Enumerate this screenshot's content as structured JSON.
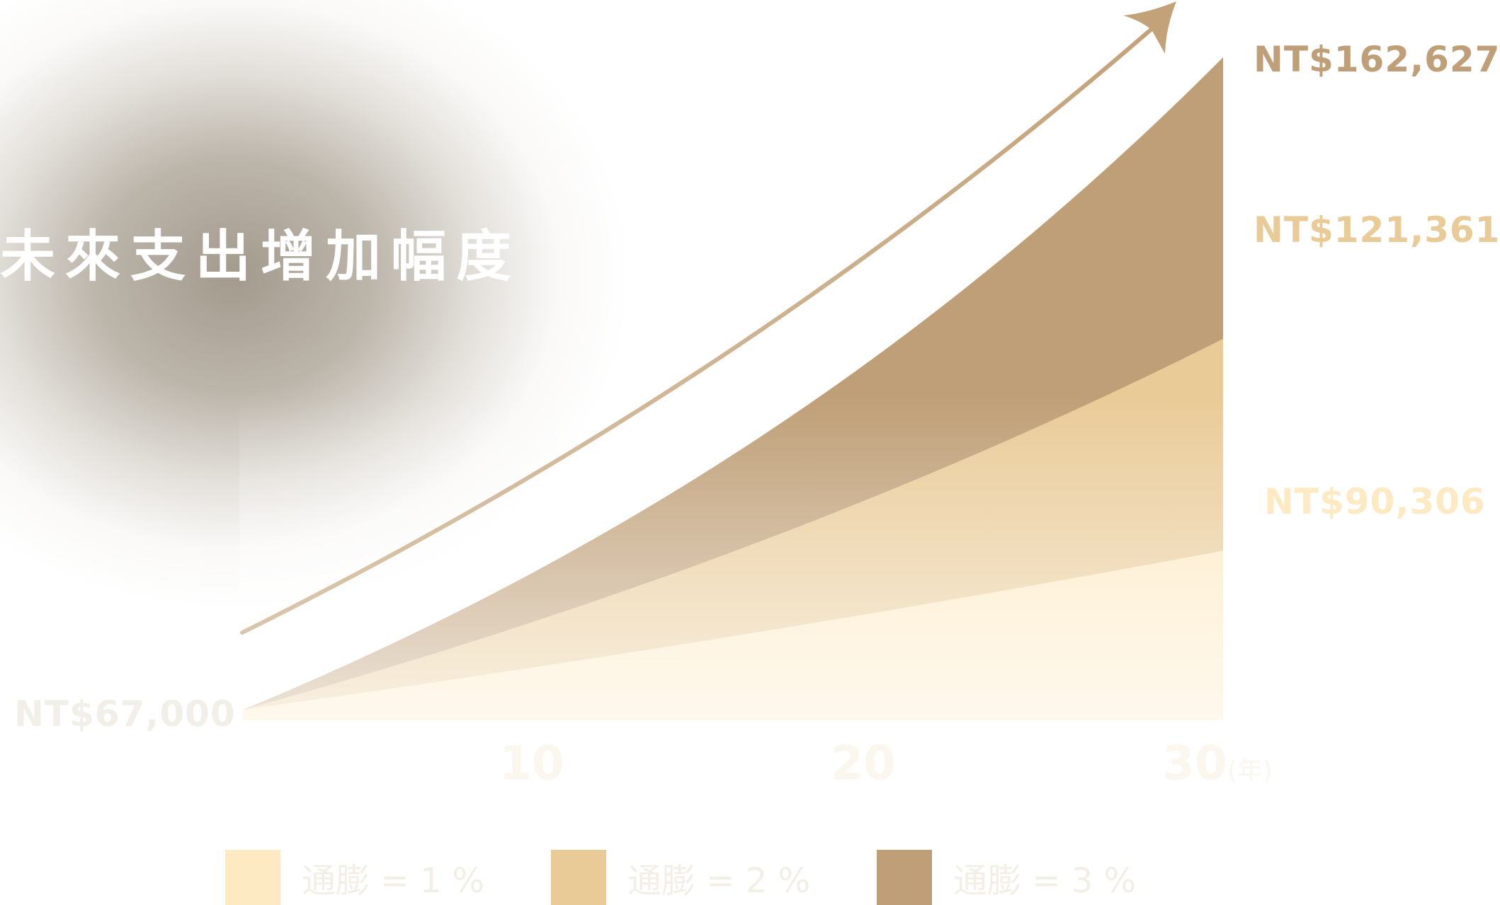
{
  "colors": {
    "inflation_1": "#fde9c2",
    "inflation_2": "#e9cb98",
    "inflation_3": "#bf9f77",
    "arrow": "#c3a27a",
    "start_label": "#f2eee8",
    "axis_labels": "#fbf6ee"
  },
  "chart_data": {
    "type": "area",
    "title": "未來支出增加幅度",
    "x": [
      0,
      10,
      20,
      30
    ],
    "xlabel": "",
    "ylabel": "",
    "x_tick_labels": [
      "10",
      "20",
      "30"
    ],
    "x_unit": "(年)",
    "start_value": 67000,
    "start_label": "NT$67,000",
    "series": [
      {
        "name": "通膨 = 1 %",
        "rate": 0.01,
        "values": [
          67000,
          74009,
          81752,
          90306
        ],
        "end_label": "NT$90,306",
        "color": "#fde9c2"
      },
      {
        "name": "通膨 = 2 %",
        "rate": 0.02,
        "values": [
          67000,
          81673,
          99551,
          121361
        ],
        "end_label": "NT$121,361",
        "color": "#e9cb98"
      },
      {
        "name": "通膨 = 3 %",
        "rate": 0.03,
        "values": [
          67000,
          90042,
          121009,
          162627
        ],
        "end_label": "NT$162,627",
        "color": "#bf9f77"
      }
    ],
    "legend_position": "bottom",
    "grid": false
  }
}
